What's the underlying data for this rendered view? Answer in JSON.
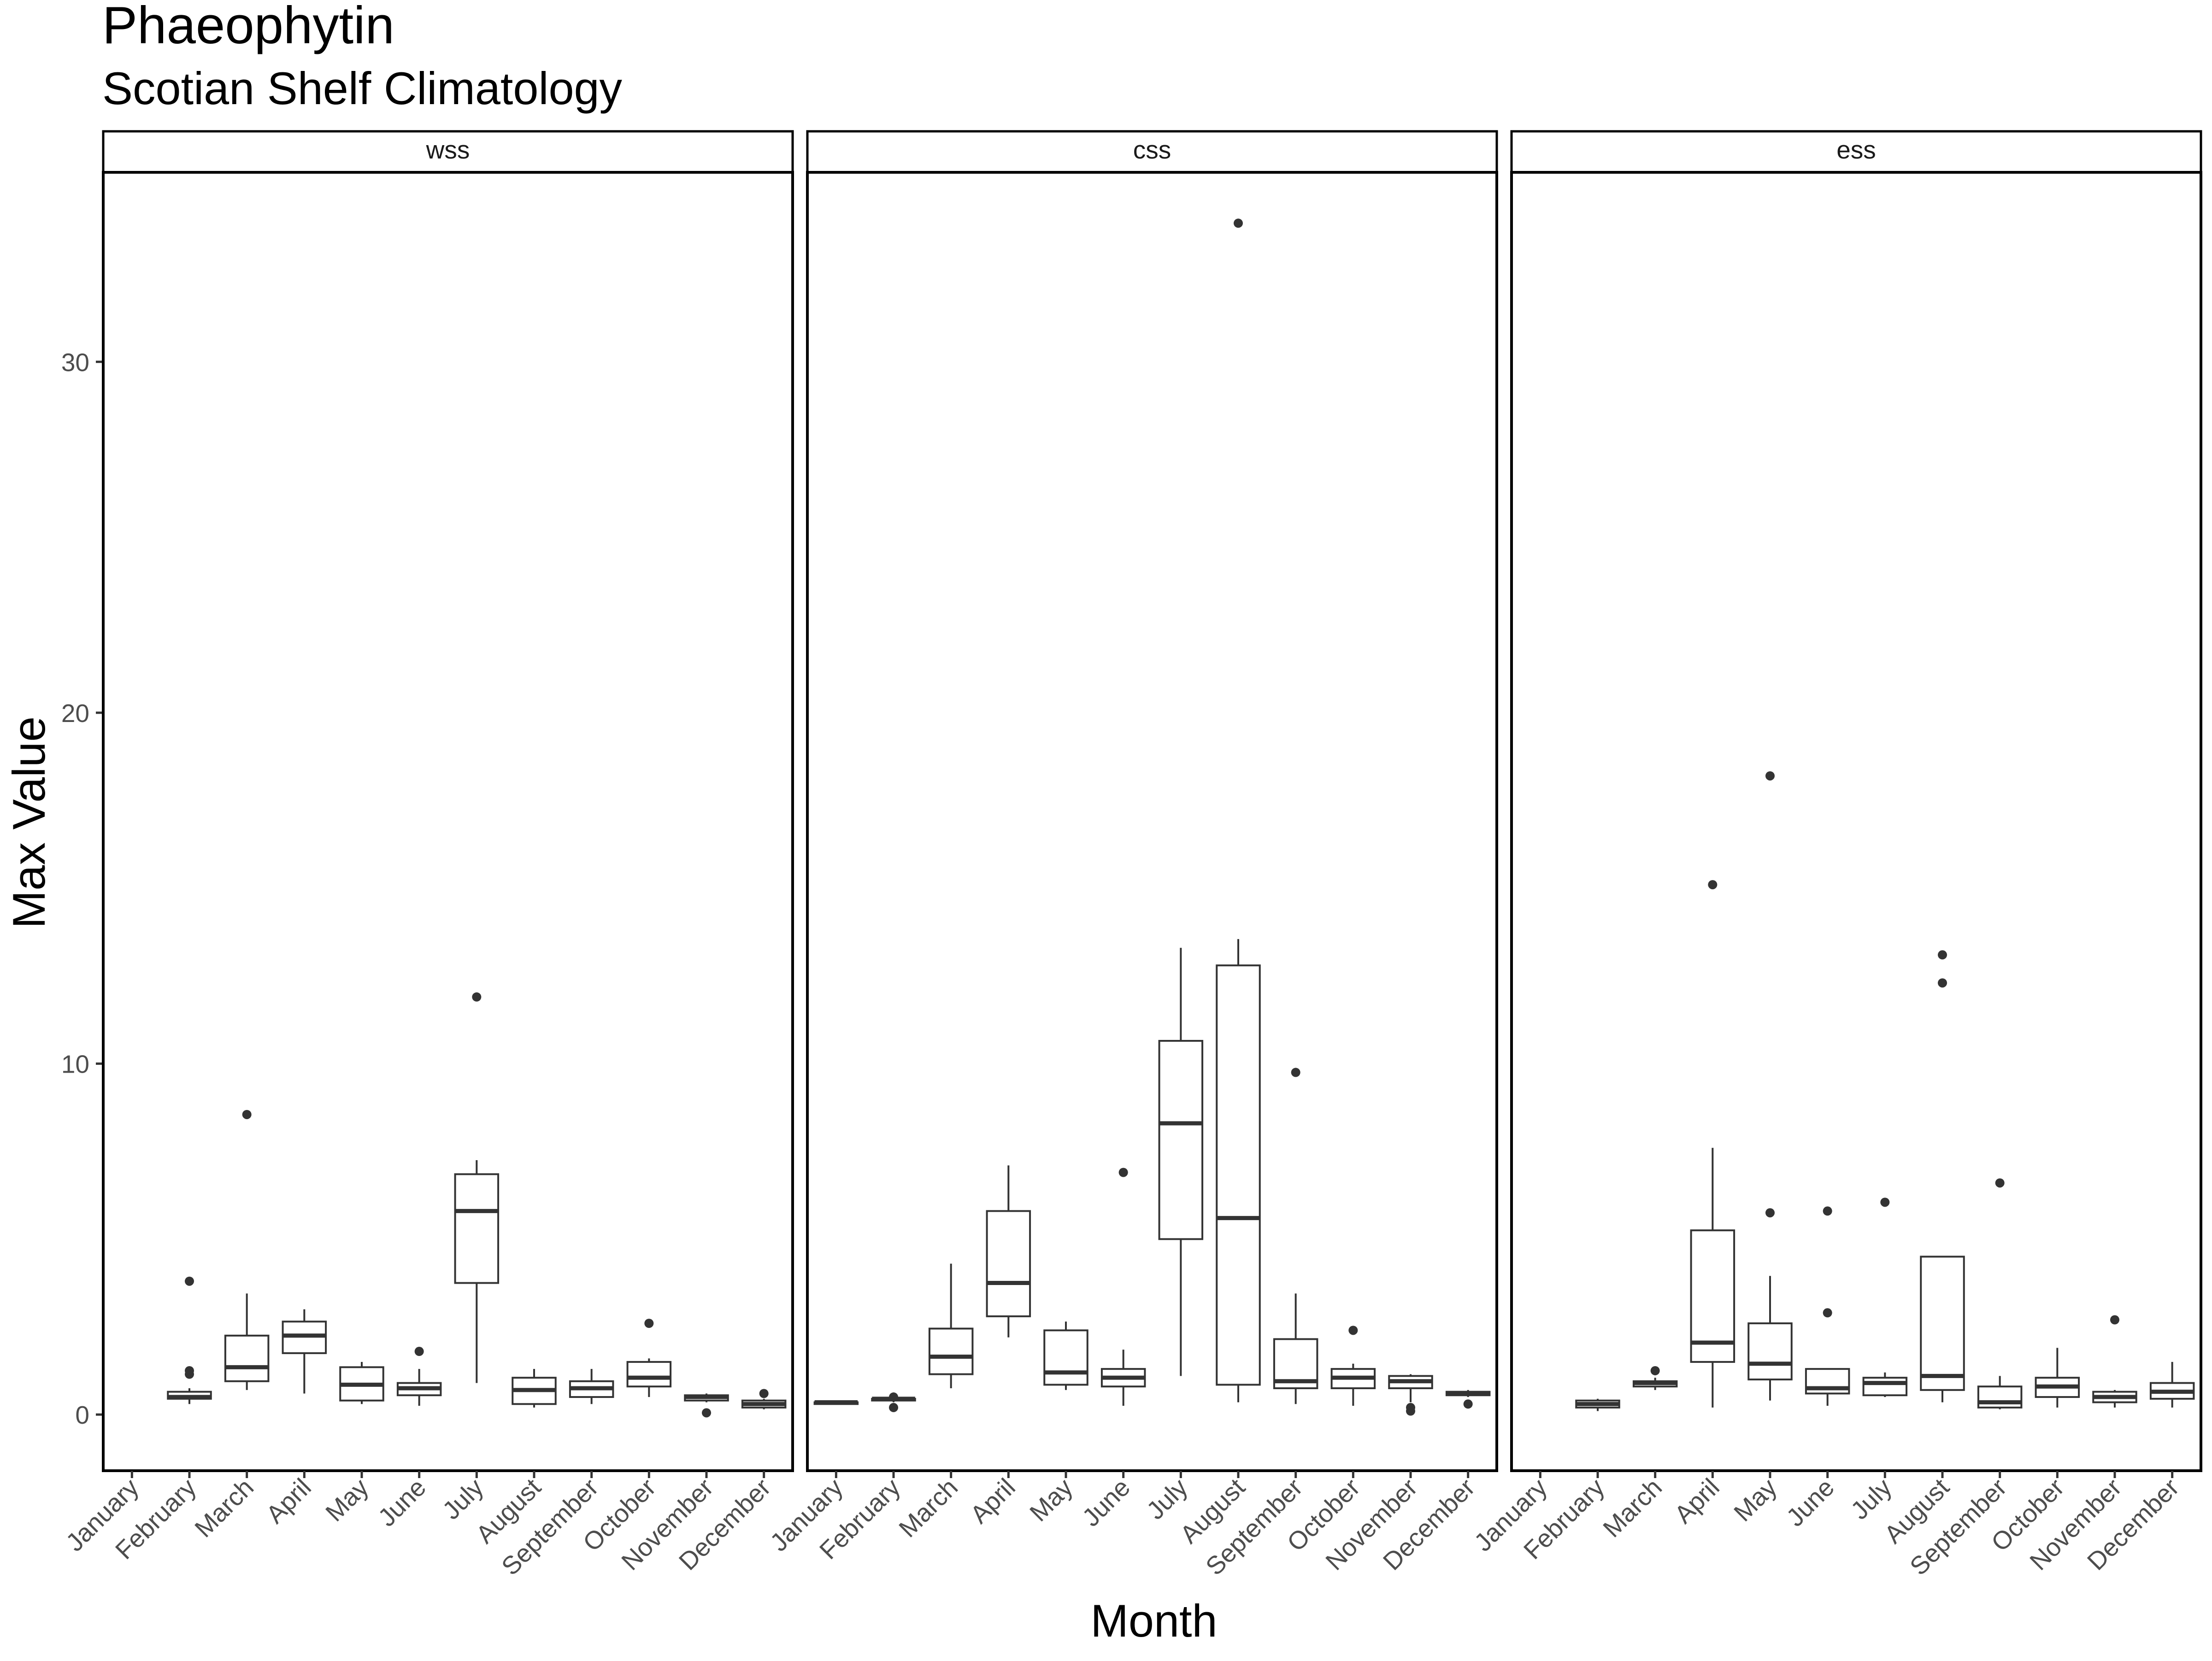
{
  "chart_data": {
    "type": "boxplot",
    "title": "Phaeophytin",
    "subtitle": "Scotian Shelf Climatology",
    "xlabel": "Month",
    "ylabel": "Max Value",
    "ylim": [
      -1.6,
      35.4
    ],
    "yticks": [
      0,
      10,
      20,
      30
    ],
    "categories": [
      "January",
      "February",
      "March",
      "April",
      "May",
      "June",
      "July",
      "August",
      "September",
      "October",
      "November",
      "December"
    ],
    "grid": false,
    "panels": [
      {
        "name": "wss",
        "boxes": [
          null,
          {
            "month": "February",
            "whisker_low": 0.3,
            "q1": 0.45,
            "median": 0.5,
            "q3": 0.65,
            "whisker_high": 0.75,
            "outliers": [
              1.15,
              1.25,
              3.8
            ]
          },
          {
            "month": "March",
            "whisker_low": 0.7,
            "q1": 0.95,
            "median": 1.35,
            "q3": 2.25,
            "whisker_high": 3.45,
            "outliers": [
              8.55
            ]
          },
          {
            "month": "April",
            "whisker_low": 0.6,
            "q1": 1.75,
            "median": 2.25,
            "q3": 2.65,
            "whisker_high": 3.0,
            "outliers": []
          },
          {
            "month": "May",
            "whisker_low": 0.3,
            "q1": 0.4,
            "median": 0.85,
            "q3": 1.35,
            "whisker_high": 1.5,
            "outliers": []
          },
          {
            "month": "June",
            "whisker_low": 0.25,
            "q1": 0.55,
            "median": 0.75,
            "q3": 0.9,
            "whisker_high": 1.3,
            "outliers": [
              1.8
            ]
          },
          {
            "month": "July",
            "whisker_low": 0.9,
            "q1": 3.75,
            "median": 5.8,
            "q3": 6.85,
            "whisker_high": 7.25,
            "outliers": [
              11.9
            ]
          },
          {
            "month": "August",
            "whisker_low": 0.2,
            "q1": 0.3,
            "median": 0.7,
            "q3": 1.05,
            "whisker_high": 1.3,
            "outliers": []
          },
          {
            "month": "September",
            "whisker_low": 0.3,
            "q1": 0.5,
            "median": 0.75,
            "q3": 0.95,
            "whisker_high": 1.3,
            "outliers": []
          },
          {
            "month": "October",
            "whisker_low": 0.5,
            "q1": 0.8,
            "median": 1.05,
            "q3": 1.5,
            "whisker_high": 1.6,
            "outliers": [
              2.6
            ]
          },
          {
            "month": "November",
            "whisker_low": 0.35,
            "q1": 0.4,
            "median": 0.5,
            "q3": 0.55,
            "whisker_high": 0.6,
            "outliers": [
              0.05
            ]
          },
          {
            "month": "December",
            "whisker_low": 0.15,
            "q1": 0.2,
            "median": 0.3,
            "q3": 0.4,
            "whisker_high": 0.45,
            "outliers": [
              0.6
            ]
          }
        ]
      },
      {
        "name": "css",
        "boxes": [
          {
            "month": "January",
            "whisker_low": 0.3,
            "q1": 0.3,
            "median": 0.35,
            "q3": 0.35,
            "whisker_high": 0.4,
            "outliers": []
          },
          {
            "month": "February",
            "whisker_low": 0.35,
            "q1": 0.4,
            "median": 0.45,
            "q3": 0.45,
            "whisker_high": 0.5,
            "outliers": [
              0.2,
              0.5
            ]
          },
          {
            "month": "March",
            "whisker_low": 0.75,
            "q1": 1.15,
            "median": 1.65,
            "q3": 2.45,
            "whisker_high": 4.3,
            "outliers": []
          },
          {
            "month": "April",
            "whisker_low": 2.2,
            "q1": 2.8,
            "median": 3.75,
            "q3": 5.8,
            "whisker_high": 7.1,
            "outliers": []
          },
          {
            "month": "May",
            "whisker_low": 0.7,
            "q1": 0.85,
            "median": 1.2,
            "q3": 2.4,
            "whisker_high": 2.65,
            "outliers": []
          },
          {
            "month": "June",
            "whisker_low": 0.25,
            "q1": 0.8,
            "median": 1.05,
            "q3": 1.3,
            "whisker_high": 1.85,
            "outliers": [
              6.9
            ]
          },
          {
            "month": "July",
            "whisker_low": 1.1,
            "q1": 5.0,
            "median": 8.3,
            "q3": 10.65,
            "whisker_high": 13.3,
            "outliers": []
          },
          {
            "month": "August",
            "whisker_low": 0.35,
            "q1": 0.85,
            "median": 5.6,
            "q3": 12.8,
            "whisker_high": 13.55,
            "outliers": [
              33.95
            ]
          },
          {
            "month": "September",
            "whisker_low": 0.3,
            "q1": 0.75,
            "median": 0.95,
            "q3": 2.15,
            "whisker_high": 3.45,
            "outliers": [
              9.75
            ]
          },
          {
            "month": "October",
            "whisker_low": 0.25,
            "q1": 0.75,
            "median": 1.05,
            "q3": 1.3,
            "whisker_high": 1.45,
            "outliers": [
              2.4
            ]
          },
          {
            "month": "November",
            "whisker_low": 0.35,
            "q1": 0.75,
            "median": 0.95,
            "q3": 1.1,
            "whisker_high": 1.15,
            "outliers": [
              0.1,
              0.2
            ]
          },
          {
            "month": "December",
            "whisker_low": 0.5,
            "q1": 0.55,
            "median": 0.6,
            "q3": 0.65,
            "whisker_high": 0.7,
            "outliers": [
              0.3
            ]
          }
        ]
      },
      {
        "name": "ess",
        "boxes": [
          null,
          {
            "month": "February",
            "whisker_low": 0.1,
            "q1": 0.2,
            "median": 0.3,
            "q3": 0.4,
            "whisker_high": 0.45,
            "outliers": []
          },
          {
            "month": "March",
            "whisker_low": 0.7,
            "q1": 0.8,
            "median": 0.9,
            "q3": 0.95,
            "whisker_high": 1.05,
            "outliers": [
              1.25
            ]
          },
          {
            "month": "April",
            "whisker_low": 0.2,
            "q1": 1.5,
            "median": 2.05,
            "q3": 5.25,
            "whisker_high": 7.6,
            "outliers": [
              15.1
            ]
          },
          {
            "month": "May",
            "whisker_low": 0.4,
            "q1": 1.0,
            "median": 1.45,
            "q3": 2.6,
            "whisker_high": 3.95,
            "outliers": [
              5.75,
              18.2
            ]
          },
          {
            "month": "June",
            "whisker_low": 0.25,
            "q1": 0.6,
            "median": 0.75,
            "q3": 1.3,
            "whisker_high": 1.3,
            "outliers": [
              2.9,
              5.8
            ]
          },
          {
            "month": "July",
            "whisker_low": 0.5,
            "q1": 0.55,
            "median": 0.9,
            "q3": 1.05,
            "whisker_high": 1.2,
            "outliers": [
              6.05
            ]
          },
          {
            "month": "August",
            "whisker_low": 0.35,
            "q1": 0.7,
            "median": 1.1,
            "q3": 4.5,
            "whisker_high": 4.5,
            "outliers": [
              12.3,
              13.1
            ]
          },
          {
            "month": "September",
            "whisker_low": 0.15,
            "q1": 0.2,
            "median": 0.35,
            "q3": 0.8,
            "whisker_high": 1.1,
            "outliers": [
              6.6
            ]
          },
          {
            "month": "October",
            "whisker_low": 0.2,
            "q1": 0.5,
            "median": 0.8,
            "q3": 1.05,
            "whisker_high": 1.9,
            "outliers": []
          },
          {
            "month": "November",
            "whisker_low": 0.2,
            "q1": 0.35,
            "median": 0.5,
            "q3": 0.65,
            "whisker_high": 0.7,
            "outliers": [
              2.7
            ]
          },
          {
            "month": "December",
            "whisker_low": 0.2,
            "q1": 0.45,
            "median": 0.65,
            "q3": 0.9,
            "whisker_high": 1.5,
            "outliers": []
          }
        ]
      }
    ]
  }
}
